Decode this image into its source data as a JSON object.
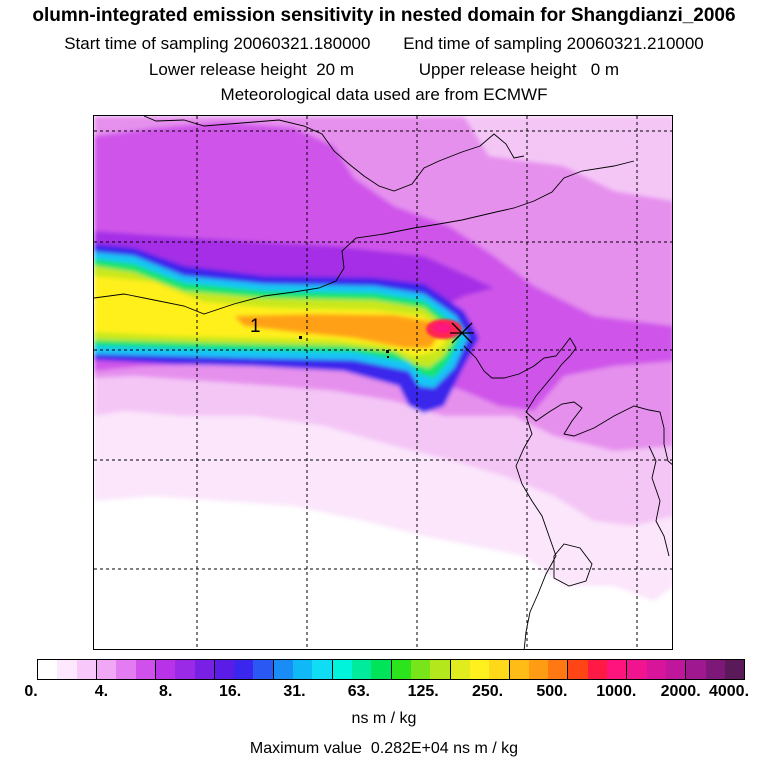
{
  "header": {
    "title": "olumn-integrated emission sensitivity in nested domain for Shangdianzi_2006",
    "start_label": "Start time of sampling",
    "start_value": "20060321.180000",
    "end_label": "End time of sampling",
    "end_value": "20060321.210000",
    "lower_label": "Lower release height",
    "lower_value": "20 m",
    "upper_label": "Upper release height",
    "upper_value": "0 m",
    "met_line": "Meteorological data used are from ECMWF"
  },
  "map": {
    "station_marker_label": "1",
    "release_site": "Shangdianzi"
  },
  "colorbar": {
    "colors": [
      "#ffffff",
      "#fde8fd",
      "#f8c8fa",
      "#f0a8f6",
      "#e27cf0",
      "#d050ec",
      "#b833e8",
      "#9a2ae6",
      "#7820e4",
      "#5a1ce6",
      "#3a26ec",
      "#2a58f2",
      "#1a8cf6",
      "#10b8f6",
      "#10dcf4",
      "#00f4dc",
      "#00ec9c",
      "#00e45a",
      "#2ce41c",
      "#78e41a",
      "#b4e81c",
      "#e0ec1e",
      "#fff01e",
      "#ffd81a",
      "#ffbc16",
      "#ff9c14",
      "#ff7812",
      "#ff4416",
      "#ff1a46",
      "#ff147e",
      "#f0148e",
      "#d8149a",
      "#c0169c",
      "#a01890",
      "#7e1878",
      "#5a1a5a"
    ],
    "tick_labels": [
      "0.",
      "4.",
      "8.",
      "16.",
      "31.",
      "63.",
      "125.",
      "250.",
      "500.",
      "1000.",
      "2000.",
      "4000."
    ],
    "unit": "ns m / kg",
    "max_prefix": "Maximum value",
    "max_value": "0.282E+04",
    "max_unit": "ns m / kg"
  }
}
